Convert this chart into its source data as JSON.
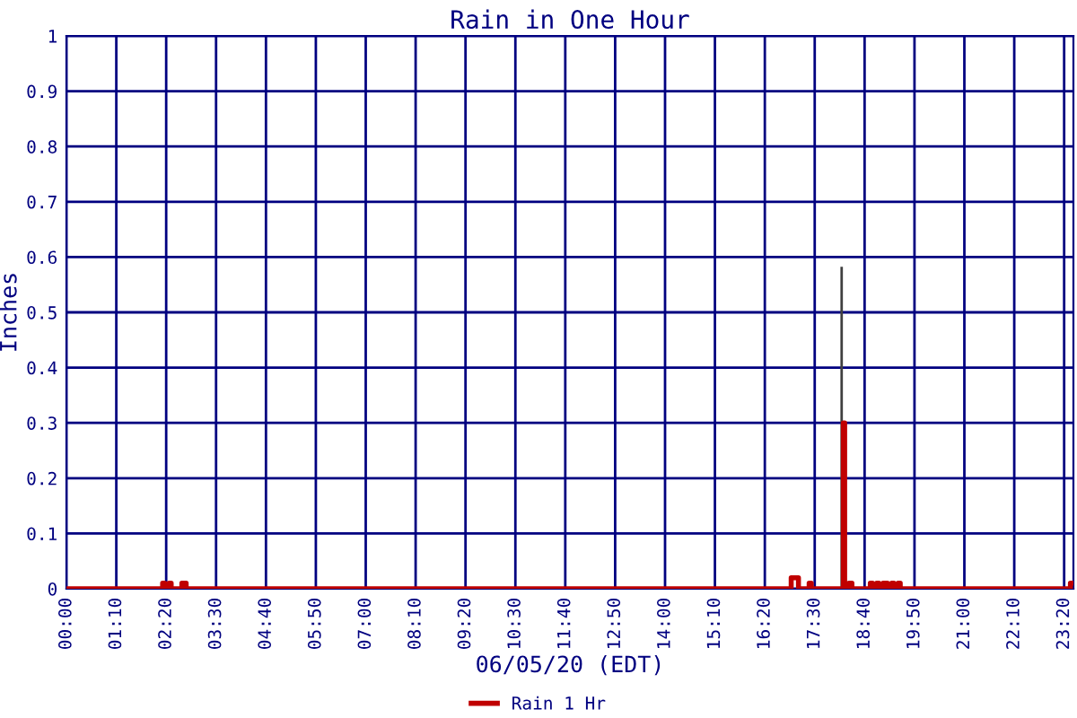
{
  "chart_data": {
    "type": "step",
    "title": "Rain in One Hour",
    "xlabel": "06/05/20 (EDT)",
    "ylabel": "Inches",
    "xlim": [
      0,
      23.55
    ],
    "ylim": [
      0,
      1
    ],
    "xticks": [
      {
        "value": 0,
        "label": "00:00"
      },
      {
        "value": 1.1667,
        "label": "01:10"
      },
      {
        "value": 2.3333,
        "label": "02:20"
      },
      {
        "value": 3.5,
        "label": "03:30"
      },
      {
        "value": 4.6667,
        "label": "04:40"
      },
      {
        "value": 5.8333,
        "label": "05:50"
      },
      {
        "value": 7,
        "label": "07:00"
      },
      {
        "value": 8.1667,
        "label": "08:10"
      },
      {
        "value": 9.3333,
        "label": "09:20"
      },
      {
        "value": 10.5,
        "label": "10:30"
      },
      {
        "value": 11.6667,
        "label": "11:40"
      },
      {
        "value": 12.8333,
        "label": "12:50"
      },
      {
        "value": 14,
        "label": "14:00"
      },
      {
        "value": 15.1667,
        "label": "15:10"
      },
      {
        "value": 16.3333,
        "label": "16:20"
      },
      {
        "value": 17.5,
        "label": "17:30"
      },
      {
        "value": 18.6667,
        "label": "18:40"
      },
      {
        "value": 19.8333,
        "label": "19:50"
      },
      {
        "value": 21,
        "label": "21:00"
      },
      {
        "value": 22.1667,
        "label": "22:10"
      },
      {
        "value": 23.3333,
        "label": "23:20"
      }
    ],
    "yticks": [
      0,
      0.1,
      0.2,
      0.3,
      0.4,
      0.5,
      0.6,
      0.7,
      0.8,
      0.9,
      1
    ],
    "grid": true,
    "legend": "bottom",
    "series": [
      {
        "name": "Rain 1 Hr",
        "color": "#c00000",
        "x": [
          0,
          2.25,
          2.3,
          2.4,
          2.45,
          2.7,
          2.8,
          16.95,
          17.12,
          17.37,
          17.42,
          18.17,
          18.2,
          18.3,
          18.37,
          18.8,
          18.85,
          18.95,
          19.0,
          19.1,
          19.2,
          19.3,
          19.35,
          19.45,
          19.5,
          23.48,
          23.52
        ],
        "values": [
          0,
          0.01,
          0,
          0.01,
          0,
          0.01,
          0,
          0.02,
          0,
          0.01,
          0,
          0.3,
          0,
          0.01,
          0,
          0.01,
          0,
          0.01,
          0,
          0.01,
          0,
          0.01,
          0,
          0.01,
          0,
          0.01,
          0.01
        ]
      },
      {
        "type": "line",
        "color": "#404040",
        "x": [
          18.13,
          18.13
        ],
        "values": [
          0,
          0.58
        ]
      }
    ]
  }
}
